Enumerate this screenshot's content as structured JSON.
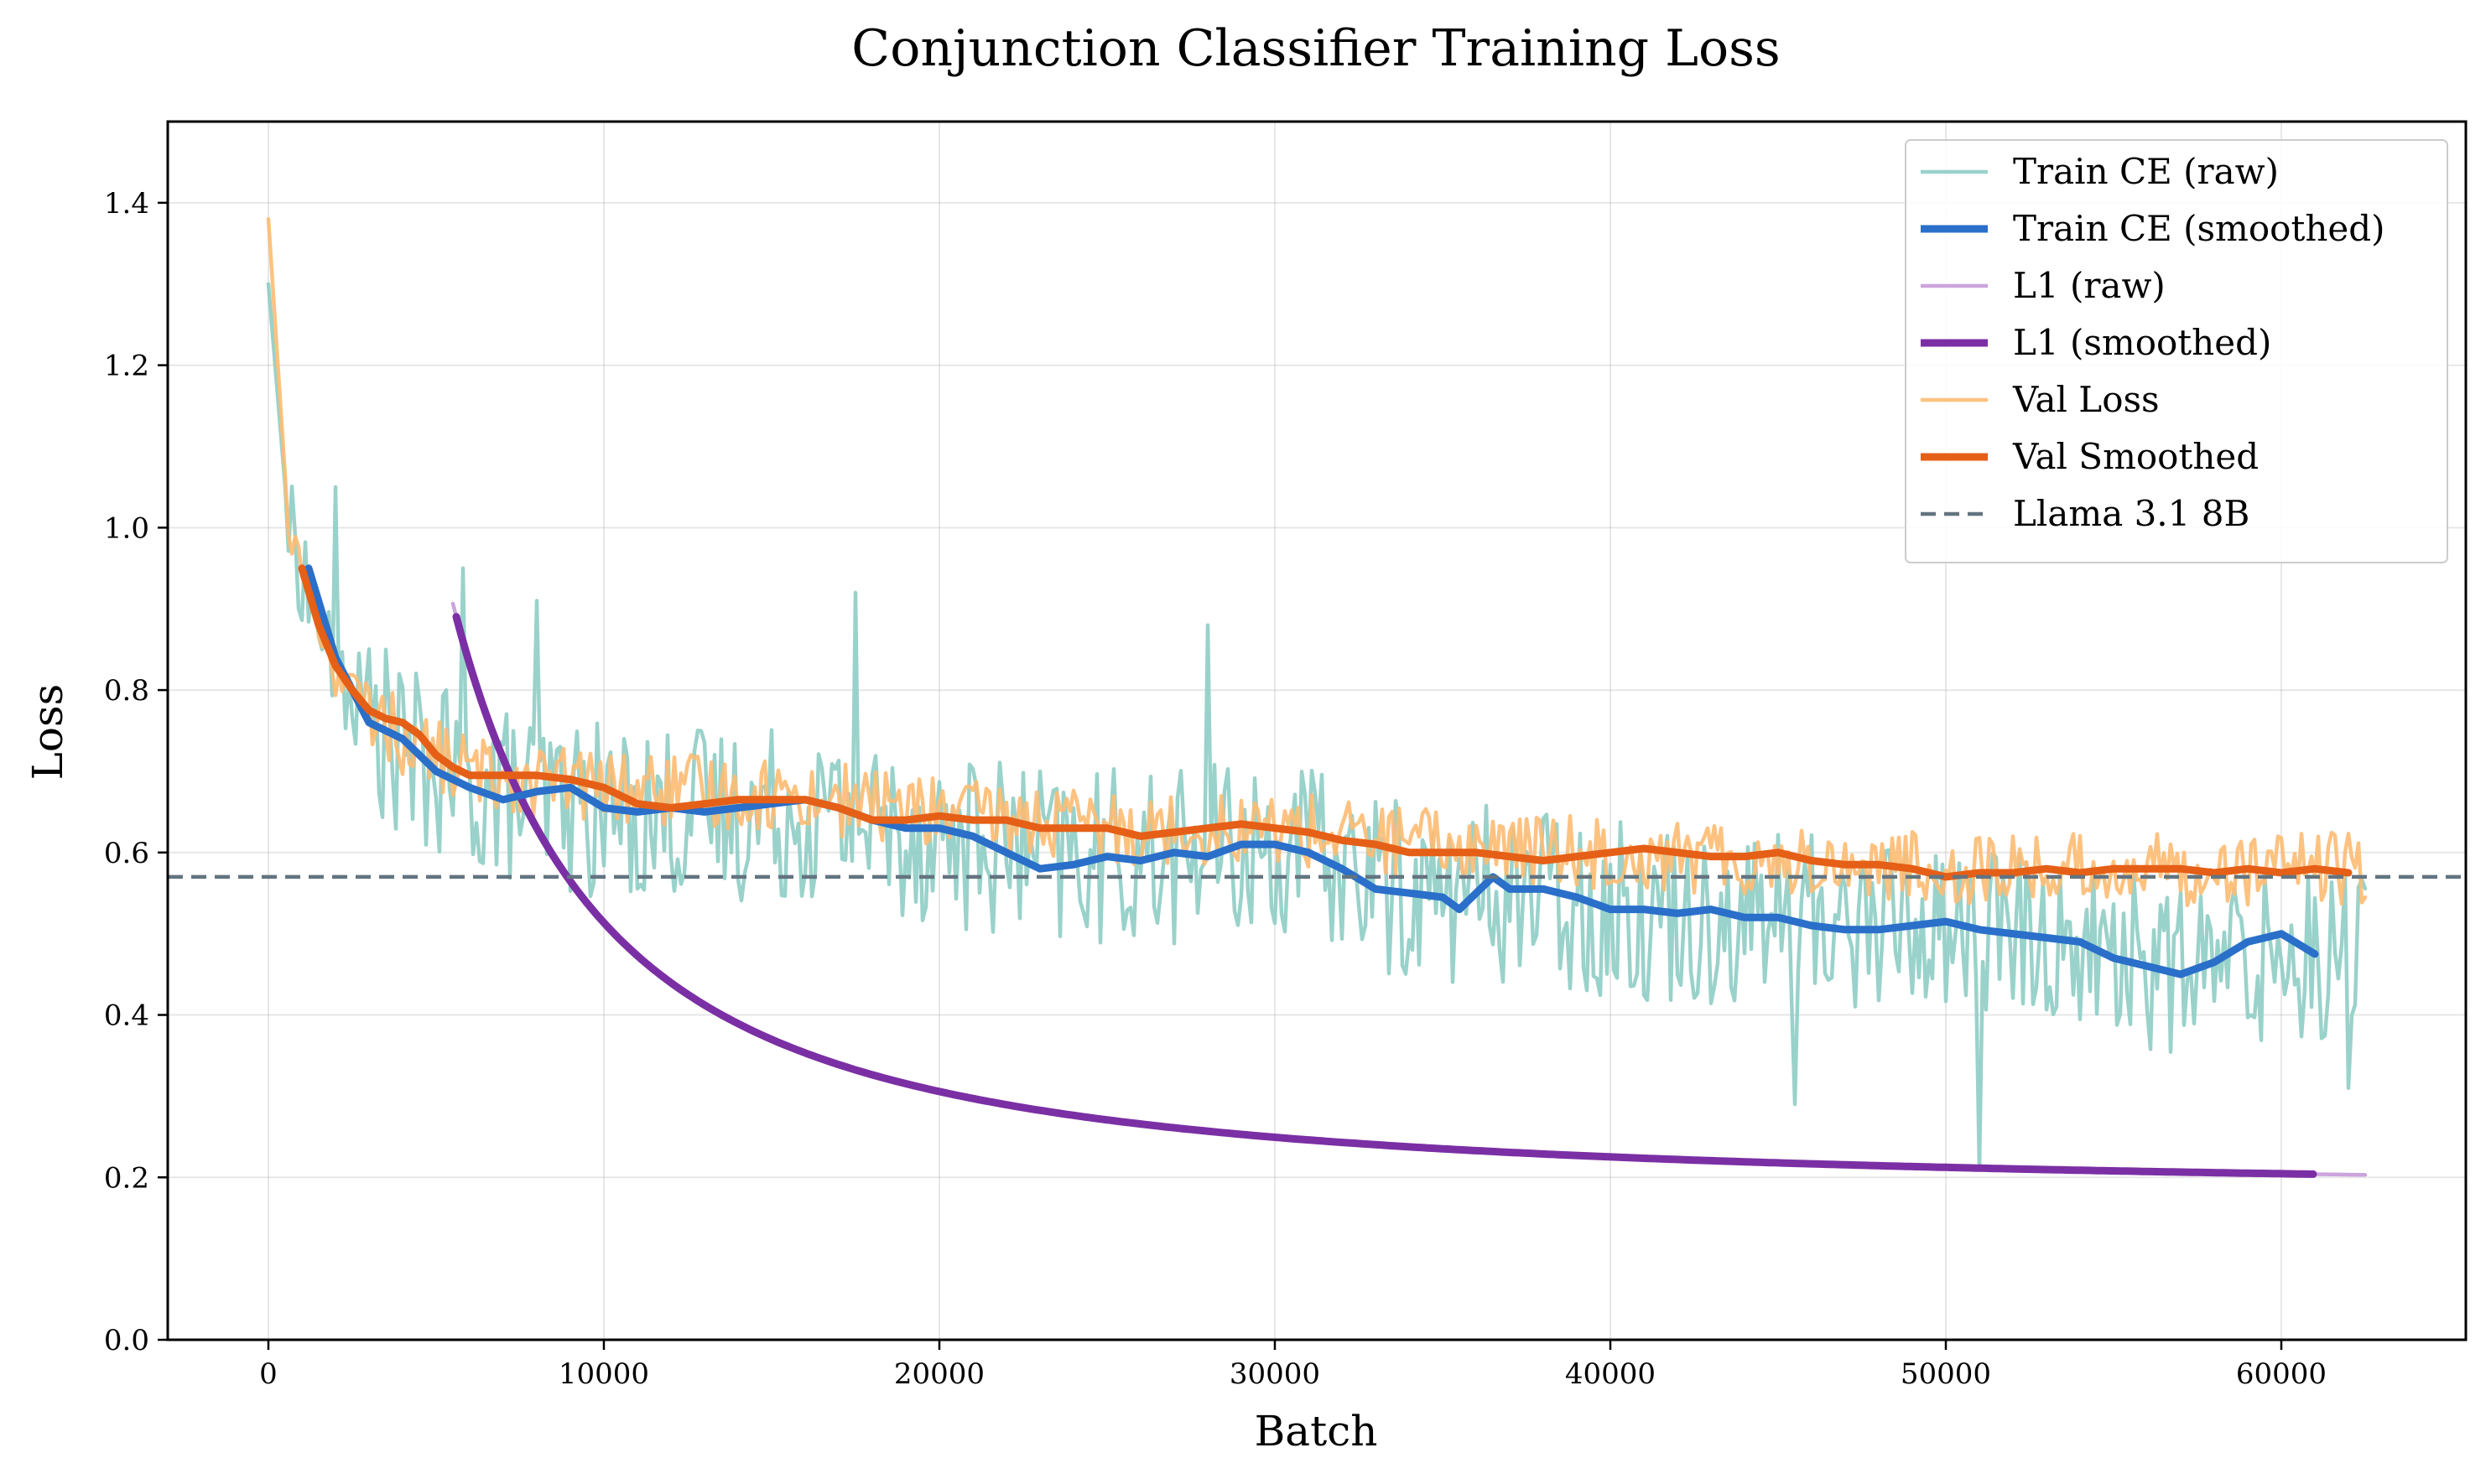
{
  "chart_data": {
    "type": "line",
    "title": "Conjunction Classifier Training Loss",
    "xlabel": "Batch",
    "ylabel": "Loss",
    "xlim": [
      -3000,
      65500
    ],
    "ylim": [
      0.0,
      1.5
    ],
    "xticks": [
      0,
      10000,
      20000,
      30000,
      40000,
      50000,
      60000
    ],
    "yticks": [
      0.0,
      0.2,
      0.4,
      0.6,
      0.8,
      1.0,
      1.2,
      1.4
    ],
    "xtick_labels": [
      "0",
      "10000",
      "20000",
      "30000",
      "40000",
      "50000",
      "60000"
    ],
    "ytick_labels": [
      "0.0",
      "0.2",
      "0.4",
      "0.6",
      "0.8",
      "1.0",
      "1.2",
      "1.4"
    ],
    "grid": true,
    "legend_position": "top-right",
    "series": [
      {
        "name": "Train CE (raw)",
        "color": "#8ecdc4",
        "style": "raw",
        "trend": [
          [
            0,
            1.3
          ],
          [
            600,
            1.0
          ],
          [
            2000,
            0.82
          ],
          [
            4000,
            0.72
          ],
          [
            6000,
            0.68
          ],
          [
            10000,
            0.65
          ],
          [
            16000,
            0.65
          ],
          [
            20000,
            0.62
          ],
          [
            24000,
            0.59
          ],
          [
            28000,
            0.6
          ],
          [
            31000,
            0.6
          ],
          [
            34000,
            0.55
          ],
          [
            38000,
            0.55
          ],
          [
            40000,
            0.53
          ],
          [
            45000,
            0.52
          ],
          [
            50000,
            0.51
          ],
          [
            55000,
            0.48
          ],
          [
            57000,
            0.45
          ],
          [
            60000,
            0.48
          ],
          [
            62500,
            0.48
          ]
        ],
        "noise": 0.11,
        "spikes": [
          [
            2000,
            1.05
          ],
          [
            5800,
            0.95
          ],
          [
            8000,
            0.91
          ],
          [
            17500,
            0.92
          ],
          [
            28000,
            0.88
          ],
          [
            45500,
            0.29
          ],
          [
            51000,
            0.21
          ],
          [
            62000,
            0.31
          ]
        ]
      },
      {
        "name": "Train CE (smoothed)",
        "color": "#2a6fc9",
        "style": "smoothed",
        "points": [
          [
            1200,
            0.95
          ],
          [
            2000,
            0.84
          ],
          [
            3000,
            0.76
          ],
          [
            4000,
            0.74
          ],
          [
            5000,
            0.7
          ],
          [
            6000,
            0.68
          ],
          [
            7000,
            0.665
          ],
          [
            8000,
            0.675
          ],
          [
            9000,
            0.68
          ],
          [
            10000,
            0.655
          ],
          [
            11000,
            0.65
          ],
          [
            12000,
            0.655
          ],
          [
            13000,
            0.65
          ],
          [
            14000,
            0.655
          ],
          [
            15000,
            0.66
          ],
          [
            16000,
            0.665
          ],
          [
            17000,
            0.655
          ],
          [
            18000,
            0.64
          ],
          [
            19000,
            0.63
          ],
          [
            20000,
            0.63
          ],
          [
            21000,
            0.62
          ],
          [
            22000,
            0.6
          ],
          [
            23000,
            0.58
          ],
          [
            24000,
            0.585
          ],
          [
            25000,
            0.595
          ],
          [
            26000,
            0.59
          ],
          [
            27000,
            0.6
          ],
          [
            28000,
            0.595
          ],
          [
            29000,
            0.61
          ],
          [
            30000,
            0.61
          ],
          [
            31000,
            0.6
          ],
          [
            32000,
            0.58
          ],
          [
            33000,
            0.555
          ],
          [
            34000,
            0.55
          ],
          [
            35000,
            0.545
          ],
          [
            35500,
            0.53
          ],
          [
            36000,
            0.55
          ],
          [
            36500,
            0.57
          ],
          [
            37000,
            0.555
          ],
          [
            38000,
            0.555
          ],
          [
            39000,
            0.545
          ],
          [
            40000,
            0.53
          ],
          [
            41000,
            0.53
          ],
          [
            42000,
            0.525
          ],
          [
            43000,
            0.53
          ],
          [
            44000,
            0.52
          ],
          [
            45000,
            0.52
          ],
          [
            46000,
            0.51
          ],
          [
            47000,
            0.505
          ],
          [
            48000,
            0.505
          ],
          [
            49000,
            0.51
          ],
          [
            50000,
            0.515
          ],
          [
            51000,
            0.505
          ],
          [
            52000,
            0.5
          ],
          [
            53000,
            0.495
          ],
          [
            54000,
            0.49
          ],
          [
            55000,
            0.47
          ],
          [
            56000,
            0.46
          ],
          [
            57000,
            0.45
          ],
          [
            58000,
            0.465
          ],
          [
            59000,
            0.49
          ],
          [
            60000,
            0.5
          ],
          [
            61000,
            0.475
          ]
        ]
      },
      {
        "name": "L1 (raw)",
        "color": "#c79ad9",
        "style": "raw",
        "formula": "0.18 + 14.5 / ((x + 1400) / 1000) ^ 1.55",
        "x_range": [
          5500,
          62500
        ]
      },
      {
        "name": "L1 (smoothed)",
        "color": "#7b2fa4",
        "style": "smoothed",
        "formula": "0.18 + 14.5 / ((x + 1400) / 1000) ^ 1.55",
        "x_range": [
          5600,
          61000
        ]
      },
      {
        "name": "Val Loss",
        "color": "#fdbb72",
        "style": "raw",
        "trend": [
          [
            0,
            1.38
          ],
          [
            600,
            1.0
          ],
          [
            2000,
            0.82
          ],
          [
            4000,
            0.74
          ],
          [
            6000,
            0.7
          ],
          [
            10000,
            0.68
          ],
          [
            16000,
            0.67
          ],
          [
            20000,
            0.65
          ],
          [
            25000,
            0.63
          ],
          [
            30000,
            0.63
          ],
          [
            35000,
            0.61
          ],
          [
            40000,
            0.6
          ],
          [
            45000,
            0.59
          ],
          [
            50000,
            0.58
          ],
          [
            55000,
            0.58
          ],
          [
            62500,
            0.58
          ]
        ],
        "noise": 0.045
      },
      {
        "name": "Val Smoothed",
        "color": "#e55f17",
        "style": "smoothed",
        "points": [
          [
            1000,
            0.95
          ],
          [
            1500,
            0.88
          ],
          [
            2000,
            0.83
          ],
          [
            2500,
            0.8
          ],
          [
            3000,
            0.775
          ],
          [
            3500,
            0.765
          ],
          [
            4000,
            0.76
          ],
          [
            4500,
            0.745
          ],
          [
            5000,
            0.72
          ],
          [
            5500,
            0.705
          ],
          [
            6000,
            0.695
          ],
          [
            7000,
            0.695
          ],
          [
            8000,
            0.695
          ],
          [
            9000,
            0.69
          ],
          [
            10000,
            0.68
          ],
          [
            11000,
            0.66
          ],
          [
            12000,
            0.655
          ],
          [
            13000,
            0.66
          ],
          [
            14000,
            0.665
          ],
          [
            15000,
            0.665
          ],
          [
            16000,
            0.665
          ],
          [
            17000,
            0.655
          ],
          [
            18000,
            0.64
          ],
          [
            19000,
            0.64
          ],
          [
            20000,
            0.645
          ],
          [
            21000,
            0.64
          ],
          [
            22000,
            0.64
          ],
          [
            23000,
            0.63
          ],
          [
            24000,
            0.63
          ],
          [
            25000,
            0.63
          ],
          [
            26000,
            0.62
          ],
          [
            27000,
            0.625
          ],
          [
            28000,
            0.63
          ],
          [
            29000,
            0.635
          ],
          [
            30000,
            0.63
          ],
          [
            31000,
            0.625
          ],
          [
            32000,
            0.615
          ],
          [
            33000,
            0.61
          ],
          [
            34000,
            0.6
          ],
          [
            35000,
            0.6
          ],
          [
            36000,
            0.6
          ],
          [
            37000,
            0.595
          ],
          [
            38000,
            0.59
          ],
          [
            39000,
            0.595
          ],
          [
            40000,
            0.6
          ],
          [
            41000,
            0.605
          ],
          [
            42000,
            0.6
          ],
          [
            43000,
            0.595
          ],
          [
            44000,
            0.595
          ],
          [
            45000,
            0.6
          ],
          [
            46000,
            0.59
          ],
          [
            47000,
            0.585
          ],
          [
            48000,
            0.585
          ],
          [
            49000,
            0.58
          ],
          [
            50000,
            0.57
          ],
          [
            51000,
            0.575
          ],
          [
            52000,
            0.575
          ],
          [
            53000,
            0.58
          ],
          [
            54000,
            0.575
          ],
          [
            55000,
            0.58
          ],
          [
            56000,
            0.58
          ],
          [
            57000,
            0.58
          ],
          [
            58000,
            0.575
          ],
          [
            59000,
            0.58
          ],
          [
            60000,
            0.575
          ],
          [
            61000,
            0.58
          ],
          [
            62000,
            0.575
          ]
        ]
      },
      {
        "name": "Llama 3.1 8B",
        "color": "#637480",
        "style": "reference",
        "y": 0.57
      }
    ]
  }
}
